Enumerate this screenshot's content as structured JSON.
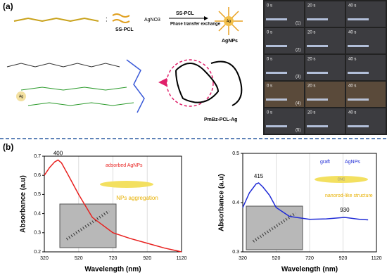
{
  "panel_a": {
    "label": "(a)",
    "reagent_left": "SS-PCL",
    "reagent_salt": "AgNO3",
    "arrow_top": "SS-PCL",
    "arrow_bottom": "Phase transfer exchange",
    "product": "AgNPs",
    "core": "Ag",
    "composite": "PmBz-PCL-Ag",
    "small_core": "Ag",
    "photos": {
      "times": [
        "0 s",
        "20 s",
        "40 s"
      ],
      "rows": [
        "(1)",
        "(2)",
        "(3)",
        "(4)",
        "(5)"
      ]
    }
  },
  "panel_b_label": "(b)",
  "chart_data": [
    {
      "type": "line",
      "x_label": "Wavelength (nm)",
      "y_label": "Absorbance (a.u)",
      "x": [
        320,
        350,
        380,
        400,
        420,
        460,
        520,
        600,
        720,
        820,
        920,
        1020,
        1120
      ],
      "series": [
        {
          "color": "#e8201e",
          "values": [
            0.6,
            0.64,
            0.67,
            0.68,
            0.665,
            0.6,
            0.5,
            0.38,
            0.3,
            0.27,
            0.245,
            0.22,
            0.2
          ]
        }
      ],
      "xlim": [
        320,
        1120
      ],
      "xticks": [
        320,
        520,
        720,
        920,
        1120
      ],
      "ylim": [
        0.2,
        0.7
      ],
      "yticks": [
        0.2,
        0.3,
        0.4,
        0.5,
        0.6,
        0.7
      ],
      "grid": true,
      "annotations": [
        "400",
        "adsorbed AgNPs",
        "NPs aggregation"
      ]
    },
    {
      "type": "line",
      "x_label": "Wavelength (nm)",
      "y_label": "Absorbance (a.u)",
      "x": [
        320,
        360,
        400,
        415,
        440,
        480,
        520,
        600,
        720,
        820,
        930,
        1020,
        1070
      ],
      "series": [
        {
          "color": "#1f2bd6",
          "values": [
            0.39,
            0.42,
            0.438,
            0.44,
            0.432,
            0.415,
            0.39,
            0.372,
            0.366,
            0.367,
            0.37,
            0.366,
            0.365
          ]
        }
      ],
      "xlim": [
        320,
        1120
      ],
      "xticks": [
        320,
        520,
        720,
        920,
        1120
      ],
      "ylim": [
        0.3,
        0.5
      ],
      "yticks": [
        0.3,
        0.4,
        0.5
      ],
      "grid": true,
      "annotations": [
        "415",
        "930",
        "graft",
        "AgNPs",
        "CNC",
        "nanorod-like structure"
      ]
    }
  ]
}
